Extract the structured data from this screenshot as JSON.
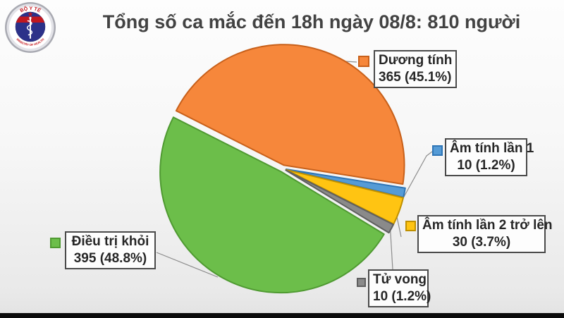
{
  "header": {
    "title": "Tổng số ca mắc đến 18h ngày 08/8: 810 người",
    "logo": {
      "top_text": "BỘ Y TẾ",
      "bottom_text": "MINISTRY OF HEALTH"
    }
  },
  "chart_data": {
    "type": "pie",
    "title": "Tổng số ca mắc đến 18h ngày 08/8: 810 người",
    "total": 810,
    "unit": "người",
    "start_angle_deg": 206.8,
    "direction": "clockwise",
    "exploded": true,
    "legend_position": "around-slices",
    "slices": [
      {
        "label": "Dương tính",
        "value": 365,
        "pct": 45.1,
        "value_label": "365 (45.1%)",
        "color": "#F6873B",
        "border": "#C8601A"
      },
      {
        "label": "Âm tính lần 1",
        "value": 10,
        "pct": 1.2,
        "value_label": "10 (1.2%)",
        "color": "#559BD6",
        "border": "#2E75B6"
      },
      {
        "label": "Âm tính lần 2 trở lên",
        "value": 30,
        "pct": 3.7,
        "value_label": "30 (3.7%)",
        "color": "#FFC412",
        "border": "#BF9000"
      },
      {
        "label": "Tử vong",
        "value": 10,
        "pct": 1.2,
        "value_label": "10 (1.2%)",
        "color": "#8A8A8A",
        "border": "#5F5F5F"
      },
      {
        "label": "Điều trị khỏi",
        "value": 395,
        "pct": 48.8,
        "value_label": "395 (48.8%)",
        "color": "#6CBE4A",
        "border": "#4F9A31"
      }
    ],
    "colors": {
      "title_text": "#424242",
      "label_box_border": "#4A4A4A",
      "leader_line": "#8C8C8C",
      "bottom_bar": "#0B0B0B"
    }
  }
}
